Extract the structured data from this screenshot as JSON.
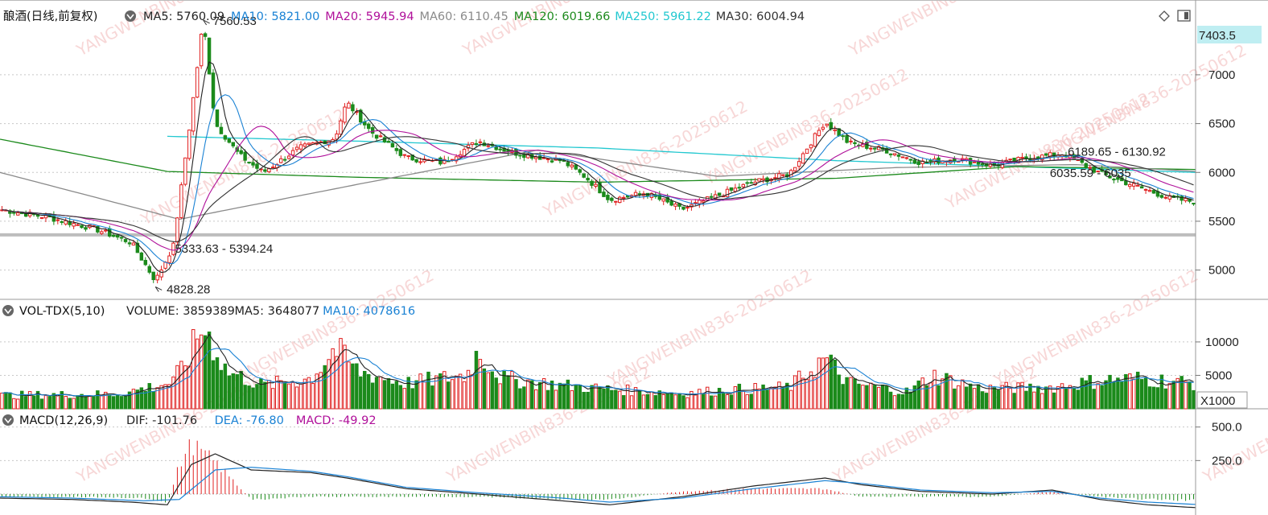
{
  "chart_data": [
    {
      "type": "candlestick",
      "panel": "price",
      "title": "酿酒(日线,前复权)",
      "ylim": [
        4700,
        7700
      ],
      "yticks": [
        5000,
        5500,
        6000,
        6500,
        7000
      ],
      "current_price_label": "7403.5",
      "moving_averages": [
        {
          "name": "MA5",
          "label": "MA5: 5760.09",
          "color": "#222222"
        },
        {
          "name": "MA10",
          "label": "MA10: 5821.00",
          "color": "#1a82d4"
        },
        {
          "name": "MA20",
          "label": "MA20: 5945.94",
          "color": "#b0109a"
        },
        {
          "name": "MA60",
          "label": "MA60: 6110.45",
          "color": "#8a8a8a"
        },
        {
          "name": "MA120",
          "label": "MA120: 6019.66",
          "color": "#1c8a1c"
        },
        {
          "name": "MA250",
          "label": "MA250: 5961.22",
          "color": "#22c8d0"
        },
        {
          "name": "MA30",
          "label": "MA30: 6004.94",
          "color": "#333333"
        }
      ],
      "annotations": [
        {
          "text": "7560.53",
          "value": 7560.53
        },
        {
          "text": "5333.63 - 5394.24",
          "value": 5360
        },
        {
          "text": "4828.28",
          "value": 4828.28
        },
        {
          "text": "6189.65 - 6130.92",
          "value": 6189.65
        },
        {
          "text": "6035.59 - 6035",
          "value": 6035.59
        }
      ],
      "support_line": 5360,
      "ma_levels": [
        {
          "name": "MA250",
          "points": [
            [
              0.14,
              6370
            ],
            [
              0.3,
              6320
            ],
            [
              0.5,
              6250
            ],
            [
              0.7,
              6120
            ],
            [
              0.85,
              6060
            ],
            [
              1.0,
              6000
            ]
          ]
        },
        {
          "name": "MA120",
          "points": [
            [
              0.0,
              6340
            ],
            [
              0.14,
              6010
            ],
            [
              0.3,
              5950
            ],
            [
              0.5,
              5900
            ],
            [
              0.7,
              5940
            ],
            [
              0.85,
              6060
            ],
            [
              1.0,
              6030
            ]
          ]
        },
        {
          "name": "MA60",
          "points": [
            [
              0.0,
              6000
            ],
            [
              0.15,
              5520
            ],
            [
              0.3,
              5880
            ],
            [
              0.45,
              6230
            ],
            [
              0.6,
              5960
            ],
            [
              0.75,
              6050
            ],
            [
              0.9,
              6080
            ],
            [
              1.0,
              6010
            ]
          ]
        }
      ],
      "close_path": [
        [
          0.0,
          5620
        ],
        [
          0.04,
          5540
        ],
        [
          0.08,
          5420
        ],
        [
          0.11,
          5280
        ],
        [
          0.13,
          4890
        ],
        [
          0.145,
          5250
        ],
        [
          0.16,
          6600
        ],
        [
          0.17,
          7560
        ],
        [
          0.18,
          6500
        ],
        [
          0.2,
          6180
        ],
        [
          0.22,
          6000
        ],
        [
          0.25,
          6250
        ],
        [
          0.28,
          6350
        ],
        [
          0.29,
          6720
        ],
        [
          0.31,
          6420
        ],
        [
          0.34,
          6150
        ],
        [
          0.37,
          6100
        ],
        [
          0.4,
          6320
        ],
        [
          0.43,
          6200
        ],
        [
          0.47,
          6120
        ],
        [
          0.49,
          5950
        ],
        [
          0.51,
          5720
        ],
        [
          0.54,
          5790
        ],
        [
          0.57,
          5620
        ],
        [
          0.6,
          5760
        ],
        [
          0.63,
          5900
        ],
        [
          0.66,
          5980
        ],
        [
          0.69,
          6520
        ],
        [
          0.71,
          6300
        ],
        [
          0.74,
          6230
        ],
        [
          0.77,
          6100
        ],
        [
          0.8,
          6140
        ],
        [
          0.83,
          6070
        ],
        [
          0.86,
          6150
        ],
        [
          0.89,
          6190
        ],
        [
          0.92,
          5990
        ],
        [
          0.95,
          5860
        ],
        [
          0.98,
          5730
        ],
        [
          1.0,
          5700
        ]
      ]
    },
    {
      "type": "bar",
      "panel": "volume",
      "title": "VOL-TDX(5,10)",
      "legend": [
        {
          "label": "VOLUME: 3859389",
          "color": "#222222"
        },
        {
          "label": "MA5: 3648077",
          "color": "#222222"
        },
        {
          "label": "MA10: 4078616",
          "color": "#1a82d4"
        }
      ],
      "ylim": [
        0,
        13000
      ],
      "yticks": [
        5000,
        10000
      ],
      "unit_label": "X1000",
      "level_path": [
        [
          0.0,
          2000
        ],
        [
          0.1,
          2200
        ],
        [
          0.145,
          4000
        ],
        [
          0.16,
          8500
        ],
        [
          0.17,
          12500
        ],
        [
          0.19,
          5500
        ],
        [
          0.22,
          3500
        ],
        [
          0.26,
          4500
        ],
        [
          0.28,
          9000
        ],
        [
          0.3,
          5500
        ],
        [
          0.34,
          3800
        ],
        [
          0.39,
          5000
        ],
        [
          0.4,
          8500
        ],
        [
          0.42,
          4500
        ],
        [
          0.47,
          3500
        ],
        [
          0.51,
          2900
        ],
        [
          0.57,
          2300
        ],
        [
          0.61,
          2800
        ],
        [
          0.66,
          3200
        ],
        [
          0.69,
          7500
        ],
        [
          0.71,
          3800
        ],
        [
          0.76,
          2500
        ],
        [
          0.78,
          5000
        ],
        [
          0.82,
          3000
        ],
        [
          0.88,
          3200
        ],
        [
          0.92,
          4200
        ],
        [
          0.95,
          4500
        ],
        [
          1.0,
          3800
        ]
      ]
    },
    {
      "type": "bar",
      "panel": "macd",
      "title": "MACD(12,26,9)",
      "legend": [
        {
          "label": "DIF: -101.76",
          "color": "#222222"
        },
        {
          "label": "DEA: -76.80",
          "color": "#1a82d4"
        },
        {
          "label": "MACD: -49.92",
          "color": "#b0109a"
        }
      ],
      "ylim": [
        -120,
        600
      ],
      "yticks": [
        250.0,
        500.0
      ],
      "dif_path": [
        [
          0.0,
          -30
        ],
        [
          0.06,
          -40
        ],
        [
          0.11,
          -60
        ],
        [
          0.14,
          -80
        ],
        [
          0.16,
          220
        ],
        [
          0.18,
          300
        ],
        [
          0.21,
          180
        ],
        [
          0.26,
          160
        ],
        [
          0.29,
          120
        ],
        [
          0.34,
          40
        ],
        [
          0.4,
          0
        ],
        [
          0.47,
          -50
        ],
        [
          0.51,
          -80
        ],
        [
          0.57,
          -20
        ],
        [
          0.63,
          60
        ],
        [
          0.69,
          120
        ],
        [
          0.72,
          70
        ],
        [
          0.77,
          20
        ],
        [
          0.83,
          0
        ],
        [
          0.88,
          30
        ],
        [
          0.92,
          -40
        ],
        [
          0.96,
          -80
        ],
        [
          1.0,
          -101
        ]
      ],
      "dea_path": [
        [
          0.0,
          -20
        ],
        [
          0.06,
          -30
        ],
        [
          0.12,
          -50
        ],
        [
          0.15,
          -40
        ],
        [
          0.18,
          180
        ],
        [
          0.21,
          200
        ],
        [
          0.26,
          170
        ],
        [
          0.29,
          130
        ],
        [
          0.34,
          50
        ],
        [
          0.4,
          10
        ],
        [
          0.47,
          -30
        ],
        [
          0.51,
          -60
        ],
        [
          0.57,
          -30
        ],
        [
          0.63,
          40
        ],
        [
          0.69,
          100
        ],
        [
          0.72,
          80
        ],
        [
          0.77,
          30
        ],
        [
          0.83,
          10
        ],
        [
          0.88,
          20
        ],
        [
          0.92,
          -30
        ],
        [
          0.96,
          -60
        ],
        [
          1.0,
          -77
        ]
      ]
    }
  ],
  "watermark_text": "YANGWENBIN836-20250612",
  "ui": {
    "toggle_icon": "diamond-icon",
    "layout_icon": "panel-toggle-icon"
  }
}
